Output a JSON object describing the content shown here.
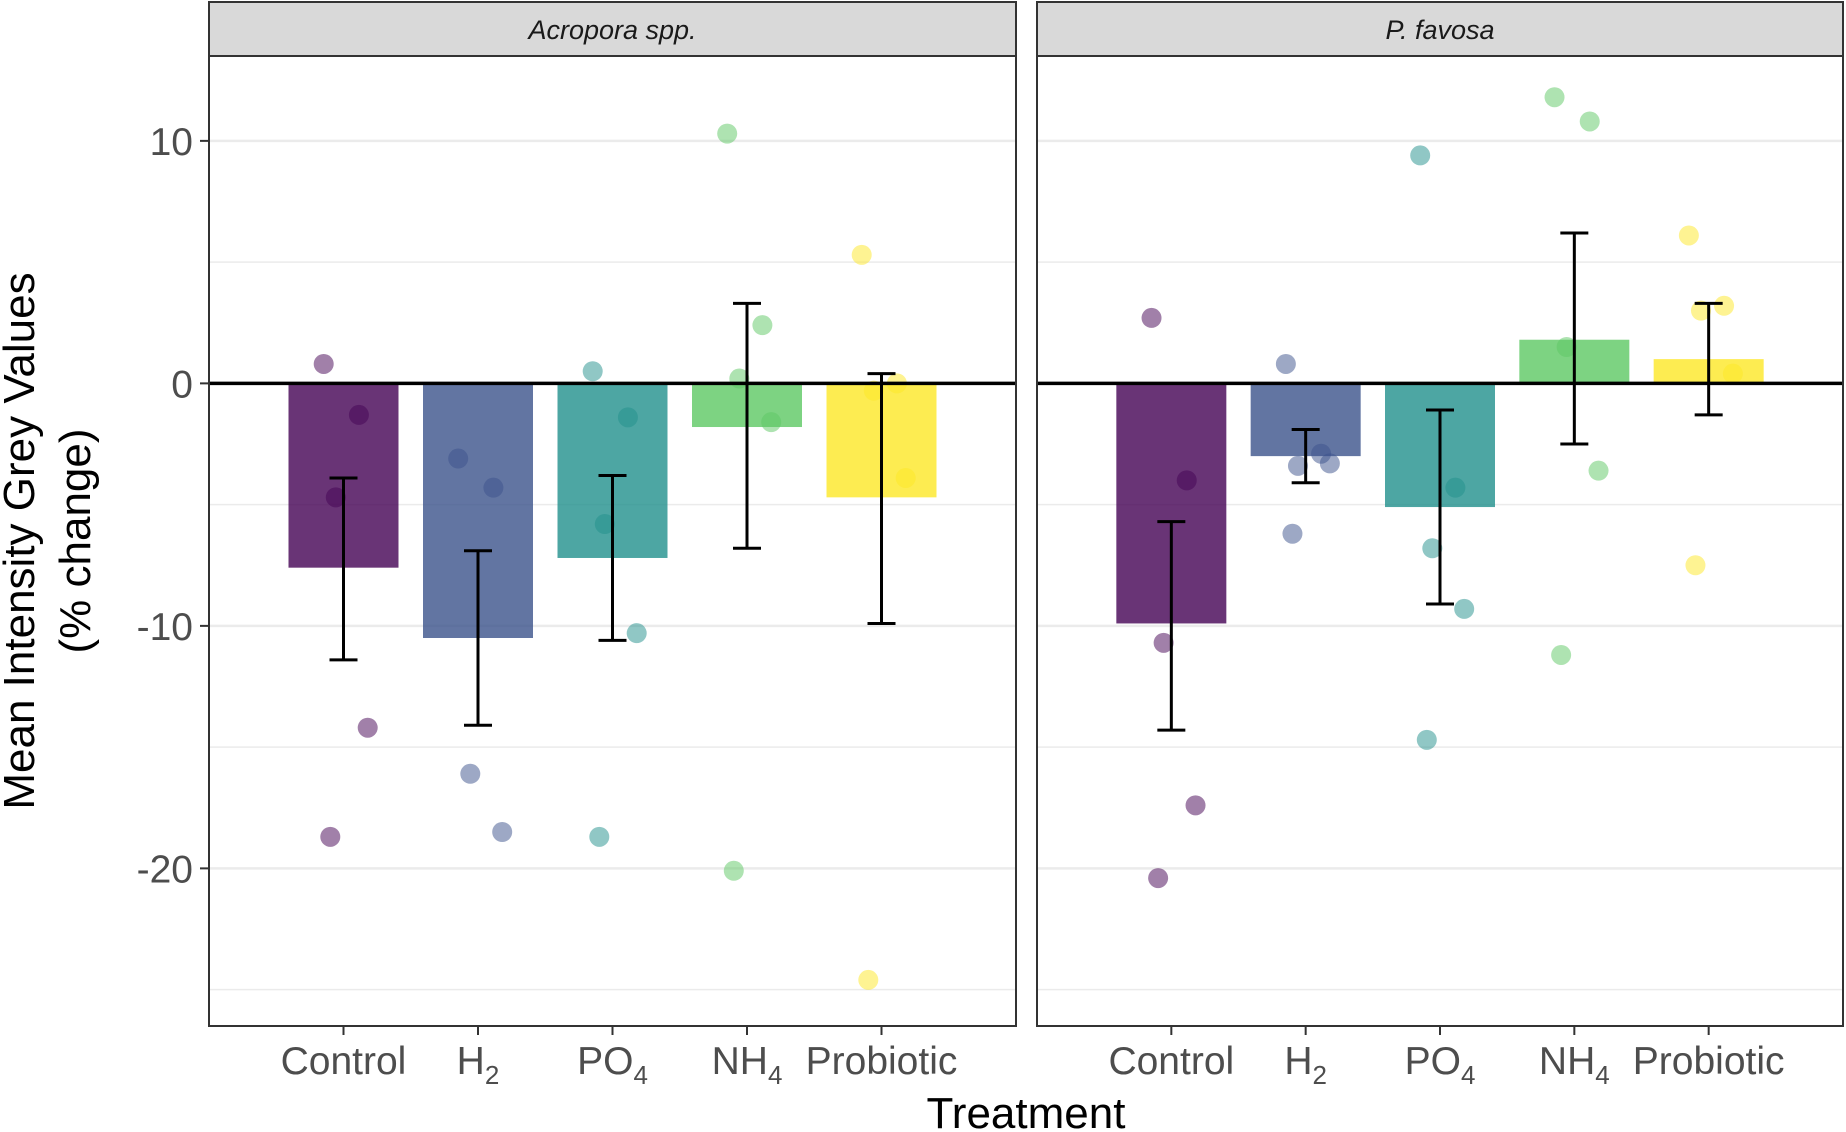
{
  "chart_data": {
    "type": "bar",
    "xlabel": "Treatment",
    "ylabel": [
      "Mean Intensity Grey Values",
      "(% change)"
    ],
    "ylim": [
      -26.5,
      13.5
    ],
    "y_ticks": [
      10,
      0,
      -10,
      -20
    ],
    "y_tick_labels": [
      "10",
      "0",
      "-10",
      "-20"
    ],
    "grid_major": [
      10,
      0,
      -10,
      -20
    ],
    "grid_minor": [
      5,
      -5,
      -15,
      -25
    ],
    "categories": [
      {
        "key": "control",
        "main": "Control",
        "sub": ""
      },
      {
        "key": "h2",
        "main": "H",
        "sub": "2"
      },
      {
        "key": "po4",
        "main": "PO",
        "sub": "4"
      },
      {
        "key": "nh4",
        "main": "NH",
        "sub": "4"
      },
      {
        "key": "probiotic",
        "main": "Probiotic",
        "sub": ""
      }
    ],
    "colors": [
      "#440154",
      "#3b528b",
      "#21908c",
      "#5dc863",
      "#fde725"
    ],
    "panels": [
      {
        "title": "Acropora spp.",
        "bars": [
          -7.6,
          -10.5,
          -7.2,
          -1.8,
          -4.7
        ],
        "errors": [
          [
            -11.4,
            -3.9
          ],
          [
            -14.1,
            -6.9
          ],
          [
            -10.6,
            -3.8
          ],
          [
            -6.8,
            3.3
          ],
          [
            -9.9,
            0.4
          ]
        ],
        "points": [
          [
            0.8,
            -1.3,
            -4.7,
            -14.2,
            -18.7
          ],
          [
            -3.1,
            -4.3,
            -16.1,
            -18.5
          ],
          [
            0.5,
            -1.4,
            -5.8,
            -10.3,
            -18.7
          ],
          [
            10.3,
            2.4,
            0.2,
            -1.6,
            -20.1
          ],
          [
            5.3,
            0.0,
            -0.3,
            -3.9,
            -24.6
          ]
        ]
      },
      {
        "title": "P. favosa",
        "bars": [
          -9.9,
          -3.0,
          -5.1,
          1.8,
          1.0
        ],
        "errors": [
          [
            -14.3,
            -5.7
          ],
          [
            -4.1,
            -1.9
          ],
          [
            -9.1,
            -1.1
          ],
          [
            -2.5,
            6.2
          ],
          [
            -1.3,
            3.3
          ]
        ],
        "points": [
          [
            2.7,
            -4.0,
            -10.7,
            -17.4,
            -20.4
          ],
          [
            0.8,
            -2.9,
            -3.4,
            -3.3,
            -6.2
          ],
          [
            9.4,
            -4.3,
            -6.8,
            -9.3,
            -14.7
          ],
          [
            11.8,
            10.8,
            1.5,
            -3.6,
            -11.2
          ],
          [
            6.1,
            3.2,
            3.0,
            0.4,
            -7.5
          ]
        ]
      }
    ]
  }
}
